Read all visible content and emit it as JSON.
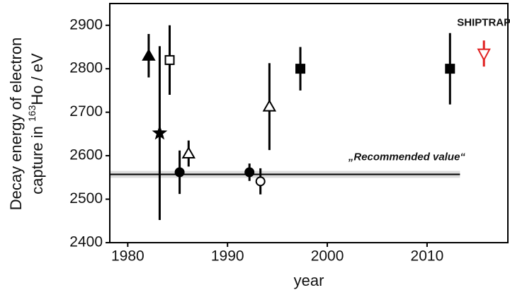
{
  "chart_data": {
    "type": "scatter",
    "x_label": "year",
    "y_label": {
      "line1": "Decay energy of electron",
      "line2_start": "capture in ",
      "superscript": "163",
      "line2_end": "Ho / eV"
    },
    "xlim": [
      1978.2,
      2018.1
    ],
    "ylim": [
      2400,
      2950
    ],
    "xticks": [
      1980,
      1990,
      2000,
      2010
    ],
    "yticks": [
      2400,
      2500,
      2600,
      2700,
      2800,
      2900
    ],
    "points": [
      {
        "x": 1982.1,
        "y": 2830,
        "error": 50,
        "marker": "triangle",
        "filled": true,
        "color": "#000000"
      },
      {
        "x": 1983.2,
        "y": 2652,
        "error": 200,
        "marker": "star",
        "filled": true,
        "color": "#000000"
      },
      {
        "x": 1984.2,
        "y": 2820,
        "error": 80,
        "marker": "square",
        "filled": false,
        "color": "#000000"
      },
      {
        "x": 1985.2,
        "y": 2562,
        "error": 50,
        "marker": "circle",
        "filled": true,
        "color": "#000000"
      },
      {
        "x": 1986.1,
        "y": 2605,
        "error": 30,
        "marker": "triangle",
        "filled": false,
        "color": "#000000"
      },
      {
        "x": 1992.2,
        "y": 2562,
        "error": 20,
        "marker": "circle",
        "filled": true,
        "color": "#000000"
      },
      {
        "x": 1993.3,
        "y": 2541,
        "error": 30,
        "marker": "circle",
        "filled": false,
        "color": "#000000"
      },
      {
        "x": 1994.2,
        "y": 2713,
        "error": 100,
        "marker": "triangle",
        "filled": false,
        "color": "#000000"
      },
      {
        "x": 1997.3,
        "y": 2800,
        "error": 50,
        "marker": "square",
        "filled": true,
        "color": "#000000"
      },
      {
        "x": 2012.3,
        "y": 2800,
        "error": 82,
        "marker": "square",
        "filled": true,
        "color": "#000000"
      },
      {
        "x": 2015.7,
        "y": 2835,
        "error": 30,
        "marker": "triangle-down",
        "filled": false,
        "color": "#e02020"
      }
    ],
    "reference": {
      "label": "„Recommended value“",
      "value": 2557,
      "band": 8,
      "x_end": 2013.3,
      "color": "#000000",
      "band_color": "#dcdcdc"
    },
    "annotation": {
      "text": "SHIPTRAP",
      "x": 2015.7,
      "y": 2905,
      "color": "#e02020"
    }
  }
}
